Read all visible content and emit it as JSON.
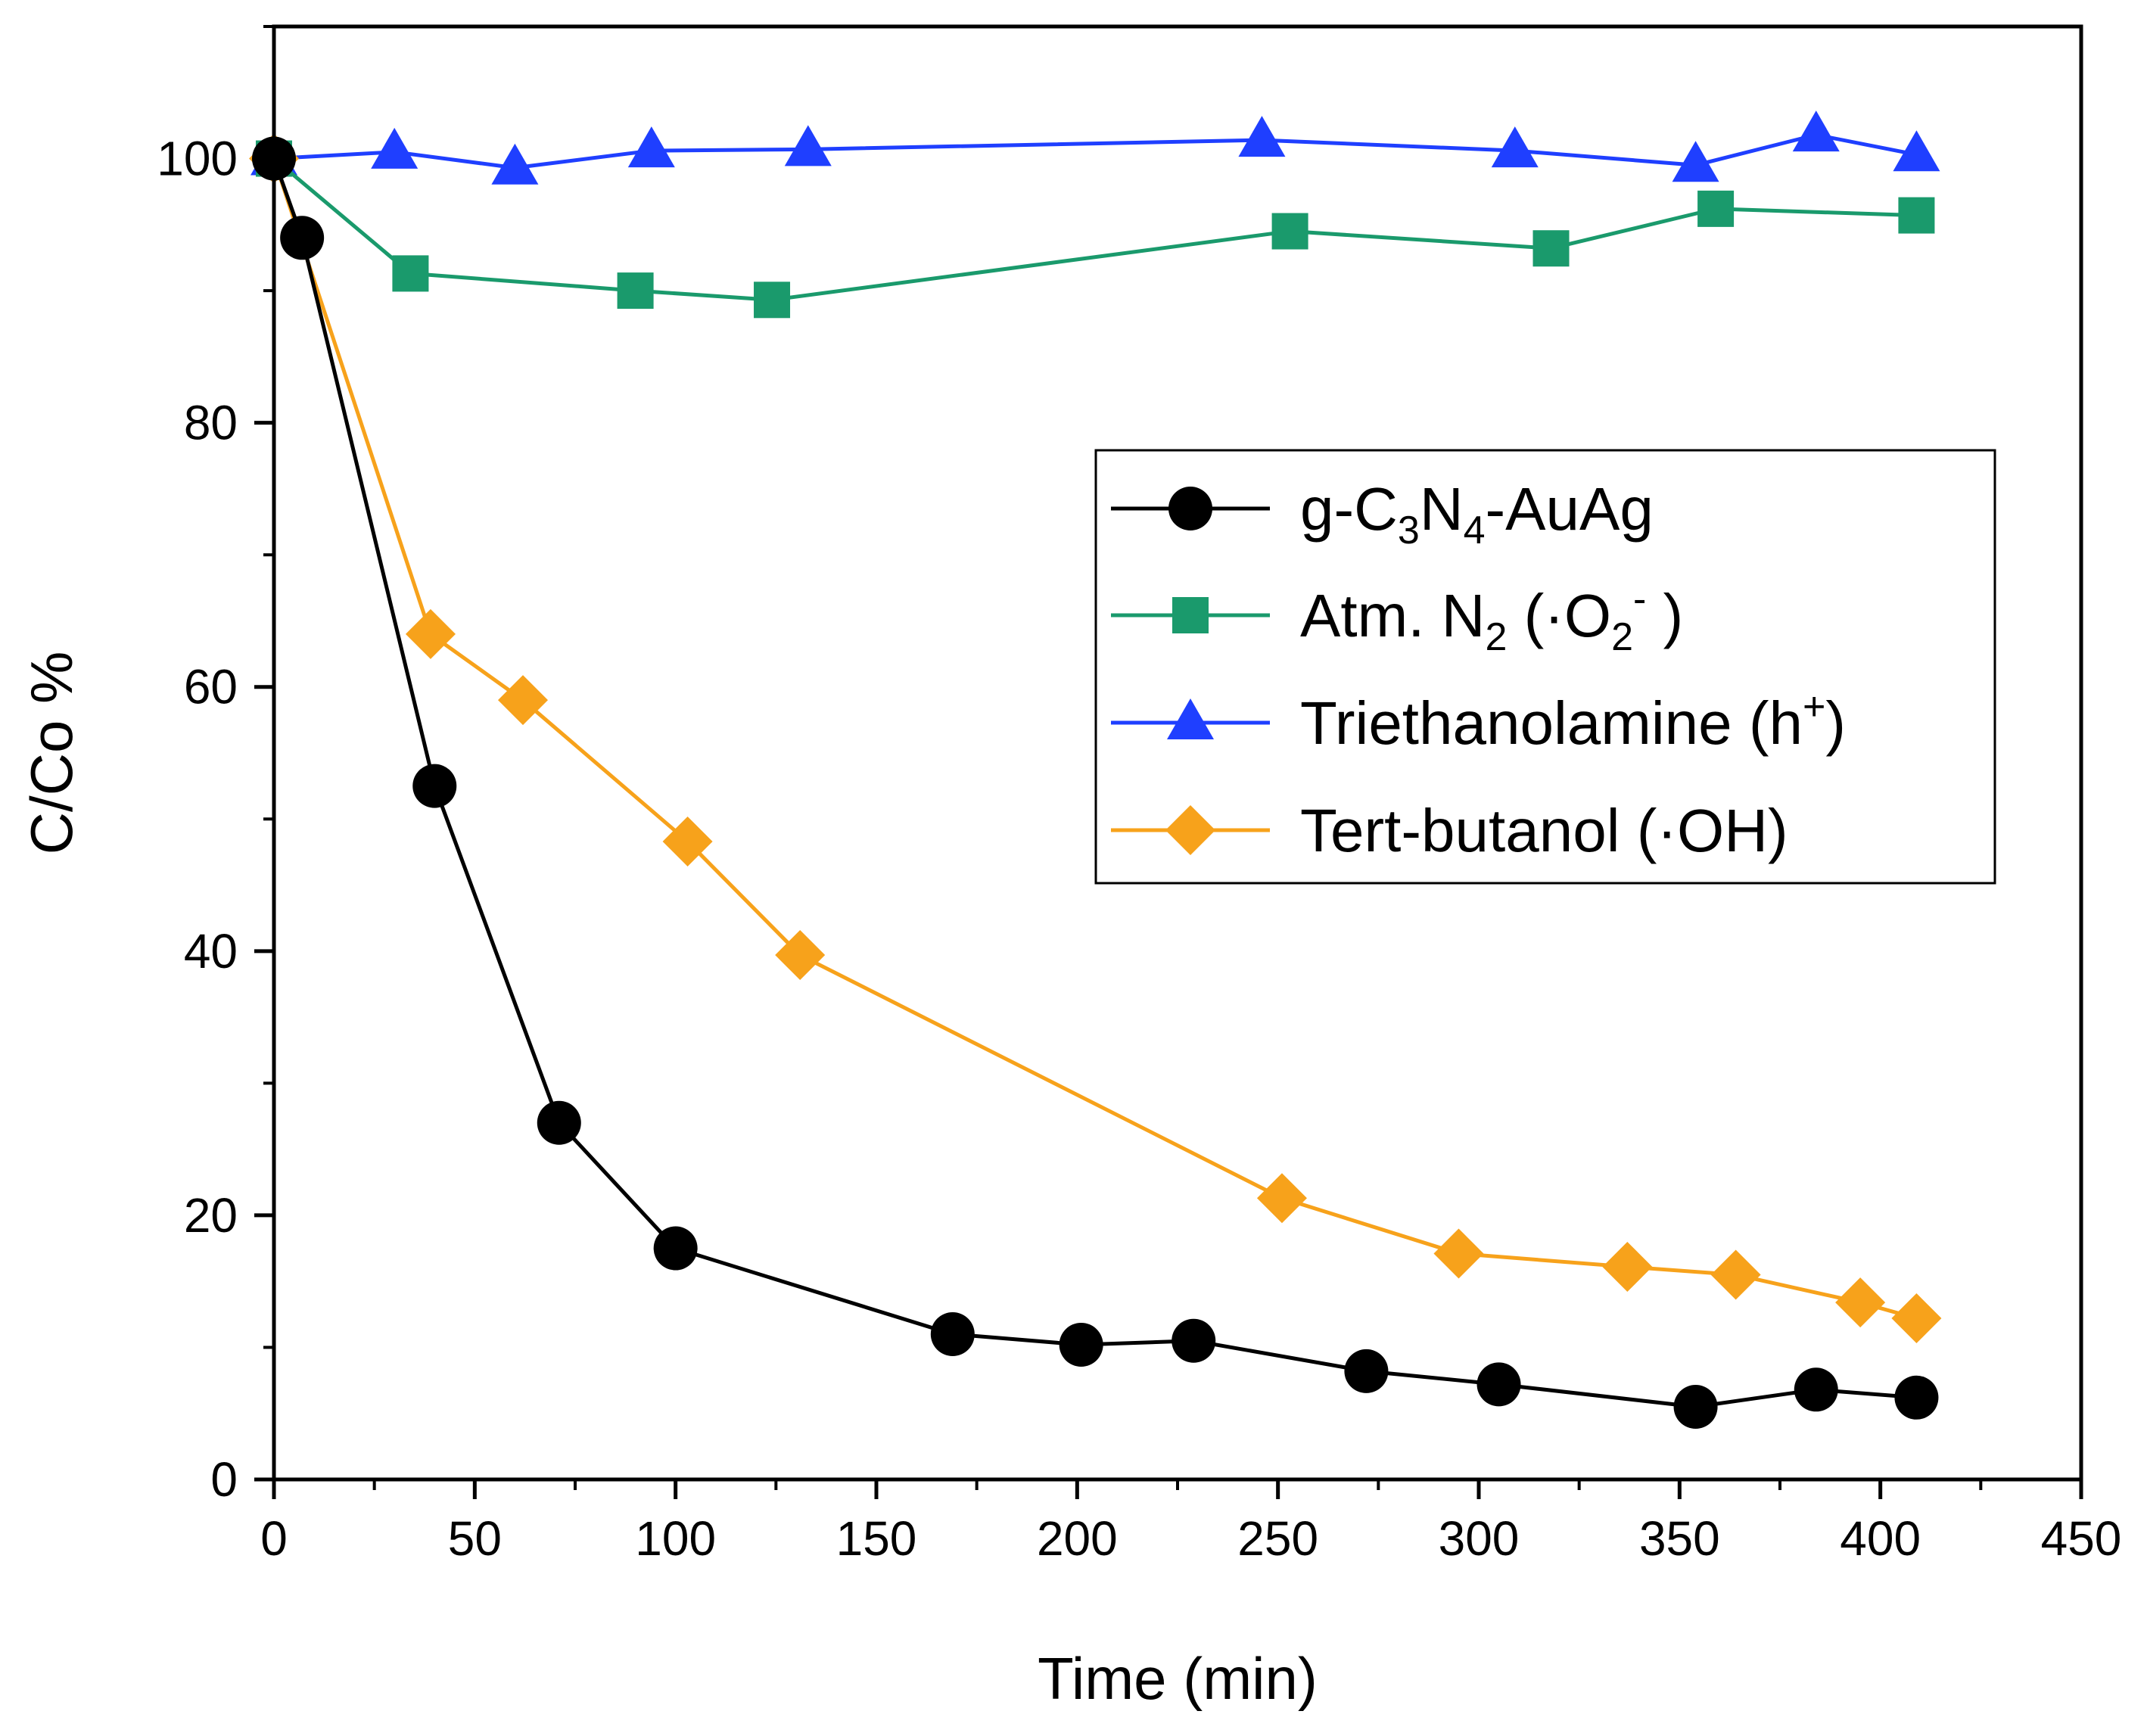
{
  "chart_data": {
    "type": "line",
    "xlabel": "Time (min)",
    "ylabel": "C/Co %",
    "xlim": [
      0,
      450
    ],
    "ylim": [
      0,
      110
    ],
    "xticks": [
      0,
      50,
      100,
      150,
      200,
      250,
      300,
      350,
      400,
      450
    ],
    "yticks": [
      0,
      20,
      40,
      60,
      80,
      100
    ],
    "xtick_labels": [
      "0",
      "50",
      "100",
      "150",
      "200",
      "250",
      "300",
      "350",
      "400",
      "450"
    ],
    "ytick_labels": [
      "0",
      "20",
      "40",
      "60",
      "80",
      "100"
    ],
    "grid": false,
    "legend_position": "center-right",
    "series": [
      {
        "name": "g-C3N4-AuAg",
        "legend": {
          "base": "g-C",
          "sub1": "3",
          "mid": "N",
          "sub2": "4",
          "tail": "-AuAg"
        },
        "color": "#000000",
        "marker": "circle",
        "x": [
          0,
          7,
          40,
          71,
          100,
          169,
          201,
          229,
          272,
          305,
          354,
          384,
          409
        ],
        "y": [
          100,
          94,
          52.5,
          27,
          17.5,
          11,
          10.2,
          10.5,
          8.2,
          7.2,
          5.5,
          6.8,
          6.2
        ]
      },
      {
        "name": "Atm. N2 (·O2-)",
        "legend": {
          "base": "Atm. N",
          "sub1": "2",
          "mid": " (·O",
          "sub2": "2",
          "sup": "-",
          "tail": " )"
        },
        "color": "#1a9a6c",
        "marker": "square",
        "x": [
          0,
          34,
          90,
          124,
          253,
          318,
          359,
          409
        ],
        "y": [
          100,
          91.3,
          90,
          89.3,
          94.5,
          93.2,
          96.2,
          95.7
        ]
      },
      {
        "name": "Triethanolamine (h+)",
        "legend": {
          "base": "Triethanolamine (h",
          "sup": "+",
          "tail": ")"
        },
        "color": "#1f3fff",
        "marker": "triangle",
        "x": [
          0,
          30,
          60,
          94,
          133,
          246,
          309,
          354,
          384,
          409
        ],
        "y": [
          100,
          100.5,
          99.3,
          100.6,
          100.7,
          101.4,
          100.6,
          99.5,
          101.8,
          100.3
        ]
      },
      {
        "name": "Tert-butanol (·OH)",
        "legend": {
          "base": "Tert-butanol (·OH)"
        },
        "color": "#f7a21b",
        "marker": "diamond",
        "x": [
          0,
          39,
          62,
          103,
          131,
          251,
          295,
          337,
          364,
          395,
          409
        ],
        "y": [
          100,
          64,
          59,
          48.3,
          39.7,
          21.3,
          17.1,
          16.1,
          15.5,
          13.4,
          12.2
        ]
      }
    ]
  }
}
